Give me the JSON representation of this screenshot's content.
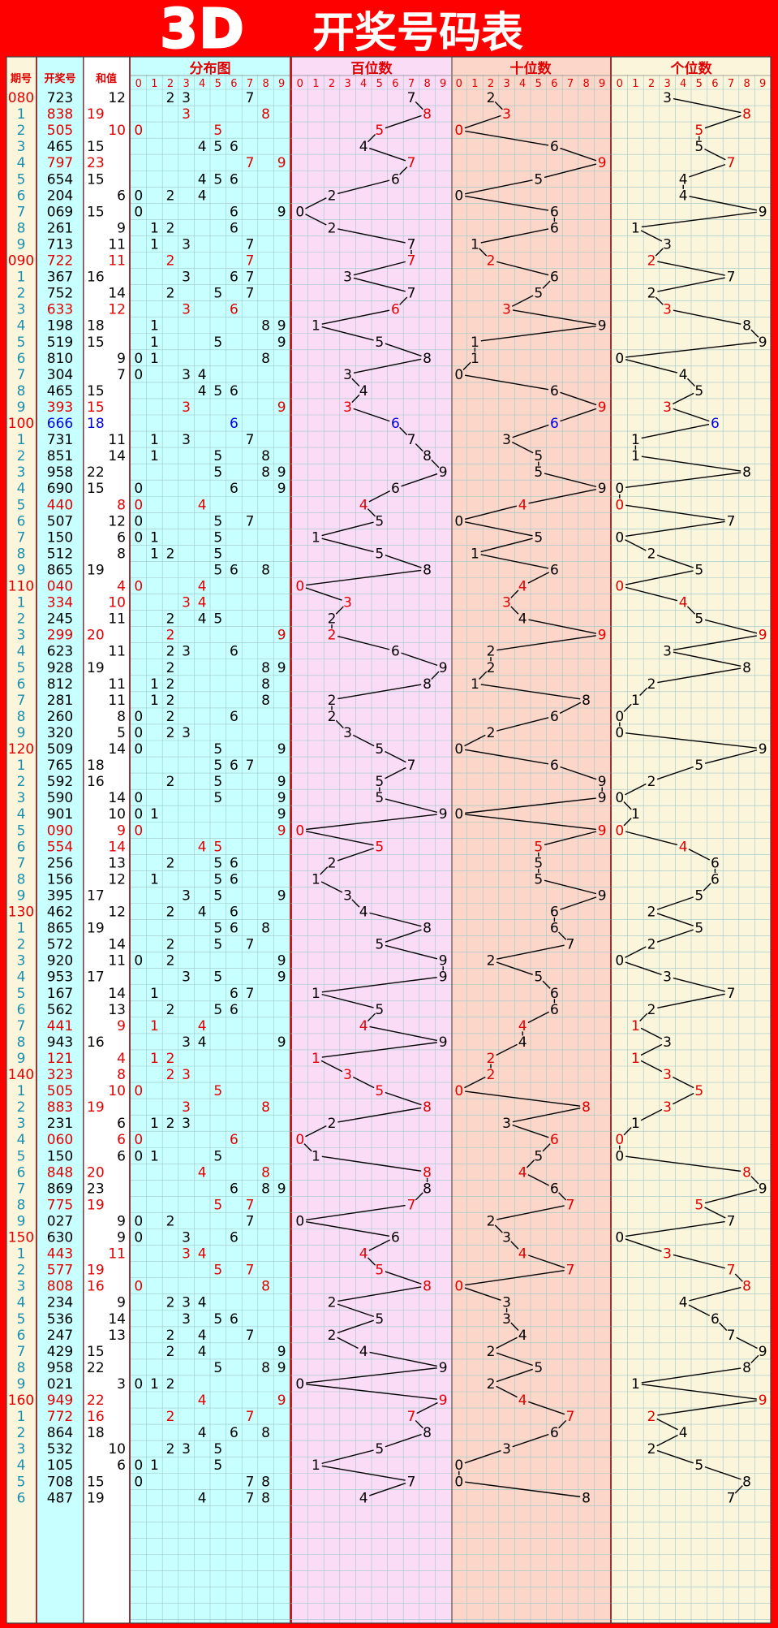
{
  "header": {
    "title_3d": "3D",
    "title_cn": "开奖号码表"
  },
  "columns": {
    "issue": "期号",
    "number": "开奖号",
    "sum": "和值",
    "distribution": "分布图",
    "hundreds": "百位数",
    "tens": "十位数",
    "units": "个位数",
    "digits": [
      "0",
      "1",
      "2",
      "3",
      "4",
      "5",
      "6",
      "7",
      "8",
      "9"
    ]
  },
  "colors": {
    "background": "#ff0000",
    "issue_bg": "#fbf5dc",
    "number_bg": "#c8ffff",
    "distribution_bg": "#c8ffff",
    "hundreds_bg": "#fbdcf7",
    "tens_bg": "#fbd6c9",
    "units_bg": "#fbf5dc",
    "highlight_red": "#e00000",
    "highlight_blue": "#0000e0",
    "grid": "#9ec8c8"
  },
  "chart_data": {
    "type": "table",
    "rows": [
      {
        "issue": "080",
        "number": "723",
        "sum": "12",
        "color": "black",
        "issue_red": true
      },
      {
        "issue": "1",
        "number": "838",
        "sum": "19",
        "color": "red"
      },
      {
        "issue": "2",
        "number": "505",
        "sum": "10",
        "color": "red"
      },
      {
        "issue": "3",
        "number": "465",
        "sum": "15",
        "color": "black"
      },
      {
        "issue": "4",
        "number": "797",
        "sum": "23",
        "color": "red"
      },
      {
        "issue": "5",
        "number": "654",
        "sum": "15",
        "color": "black"
      },
      {
        "issue": "6",
        "number": "204",
        "sum": "6",
        "color": "black"
      },
      {
        "issue": "7",
        "number": "069",
        "sum": "15",
        "color": "black"
      },
      {
        "issue": "8",
        "number": "261",
        "sum": "9",
        "color": "black"
      },
      {
        "issue": "9",
        "number": "713",
        "sum": "11",
        "color": "black"
      },
      {
        "issue": "090",
        "number": "722",
        "sum": "11",
        "color": "red",
        "issue_red": true
      },
      {
        "issue": "1",
        "number": "367",
        "sum": "16",
        "color": "black"
      },
      {
        "issue": "2",
        "number": "752",
        "sum": "14",
        "color": "black"
      },
      {
        "issue": "3",
        "number": "633",
        "sum": "12",
        "color": "red"
      },
      {
        "issue": "4",
        "number": "198",
        "sum": "18",
        "color": "black"
      },
      {
        "issue": "5",
        "number": "519",
        "sum": "15",
        "color": "black"
      },
      {
        "issue": "6",
        "number": "810",
        "sum": "9",
        "color": "black"
      },
      {
        "issue": "7",
        "number": "304",
        "sum": "7",
        "color": "black"
      },
      {
        "issue": "8",
        "number": "465",
        "sum": "15",
        "color": "black"
      },
      {
        "issue": "9",
        "number": "393",
        "sum": "15",
        "color": "red"
      },
      {
        "issue": "100",
        "number": "666",
        "sum": "18",
        "color": "blue",
        "issue_red": true
      },
      {
        "issue": "1",
        "number": "731",
        "sum": "11",
        "color": "black"
      },
      {
        "issue": "2",
        "number": "851",
        "sum": "14",
        "color": "black"
      },
      {
        "issue": "3",
        "number": "958",
        "sum": "22",
        "color": "black"
      },
      {
        "issue": "4",
        "number": "690",
        "sum": "15",
        "color": "black"
      },
      {
        "issue": "5",
        "number": "440",
        "sum": "8",
        "color": "red"
      },
      {
        "issue": "6",
        "number": "507",
        "sum": "12",
        "color": "black"
      },
      {
        "issue": "7",
        "number": "150",
        "sum": "6",
        "color": "black"
      },
      {
        "issue": "8",
        "number": "512",
        "sum": "8",
        "color": "black"
      },
      {
        "issue": "9",
        "number": "865",
        "sum": "19",
        "color": "black"
      },
      {
        "issue": "110",
        "number": "040",
        "sum": "4",
        "color": "red",
        "issue_red": true
      },
      {
        "issue": "1",
        "number": "334",
        "sum": "10",
        "color": "red"
      },
      {
        "issue": "2",
        "number": "245",
        "sum": "11",
        "color": "black"
      },
      {
        "issue": "3",
        "number": "299",
        "sum": "20",
        "color": "red"
      },
      {
        "issue": "4",
        "number": "623",
        "sum": "11",
        "color": "black"
      },
      {
        "issue": "5",
        "number": "928",
        "sum": "19",
        "color": "black"
      },
      {
        "issue": "6",
        "number": "812",
        "sum": "11",
        "color": "black"
      },
      {
        "issue": "7",
        "number": "281",
        "sum": "11",
        "color": "black"
      },
      {
        "issue": "8",
        "number": "260",
        "sum": "8",
        "color": "black"
      },
      {
        "issue": "9",
        "number": "320",
        "sum": "5",
        "color": "black"
      },
      {
        "issue": "120",
        "number": "509",
        "sum": "14",
        "color": "black",
        "issue_red": true
      },
      {
        "issue": "1",
        "number": "765",
        "sum": "18",
        "color": "black"
      },
      {
        "issue": "2",
        "number": "592",
        "sum": "16",
        "color": "black"
      },
      {
        "issue": "3",
        "number": "590",
        "sum": "14",
        "color": "black"
      },
      {
        "issue": "4",
        "number": "901",
        "sum": "10",
        "color": "black"
      },
      {
        "issue": "5",
        "number": "090",
        "sum": "9",
        "color": "red"
      },
      {
        "issue": "6",
        "number": "554",
        "sum": "14",
        "color": "red"
      },
      {
        "issue": "7",
        "number": "256",
        "sum": "13",
        "color": "black"
      },
      {
        "issue": "8",
        "number": "156",
        "sum": "12",
        "color": "black"
      },
      {
        "issue": "9",
        "number": "395",
        "sum": "17",
        "color": "black"
      },
      {
        "issue": "130",
        "number": "462",
        "sum": "12",
        "color": "black",
        "issue_red": true
      },
      {
        "issue": "1",
        "number": "865",
        "sum": "19",
        "color": "black"
      },
      {
        "issue": "2",
        "number": "572",
        "sum": "14",
        "color": "black"
      },
      {
        "issue": "3",
        "number": "920",
        "sum": "11",
        "color": "black"
      },
      {
        "issue": "4",
        "number": "953",
        "sum": "17",
        "color": "black"
      },
      {
        "issue": "5",
        "number": "167",
        "sum": "14",
        "color": "black"
      },
      {
        "issue": "6",
        "number": "562",
        "sum": "13",
        "color": "black"
      },
      {
        "issue": "7",
        "number": "441",
        "sum": "9",
        "color": "red"
      },
      {
        "issue": "8",
        "number": "943",
        "sum": "16",
        "color": "black"
      },
      {
        "issue": "9",
        "number": "121",
        "sum": "4",
        "color": "red"
      },
      {
        "issue": "140",
        "number": "323",
        "sum": "8",
        "color": "red",
        "issue_red": true
      },
      {
        "issue": "1",
        "number": "505",
        "sum": "10",
        "color": "red"
      },
      {
        "issue": "2",
        "number": "883",
        "sum": "19",
        "color": "red"
      },
      {
        "issue": "3",
        "number": "231",
        "sum": "6",
        "color": "black"
      },
      {
        "issue": "4",
        "number": "060",
        "sum": "6",
        "color": "red"
      },
      {
        "issue": "5",
        "number": "150",
        "sum": "6",
        "color": "black"
      },
      {
        "issue": "6",
        "number": "848",
        "sum": "20",
        "color": "red"
      },
      {
        "issue": "7",
        "number": "869",
        "sum": "23",
        "color": "black"
      },
      {
        "issue": "8",
        "number": "775",
        "sum": "19",
        "color": "red"
      },
      {
        "issue": "9",
        "number": "027",
        "sum": "9",
        "color": "black"
      },
      {
        "issue": "150",
        "number": "630",
        "sum": "9",
        "color": "black",
        "issue_red": true
      },
      {
        "issue": "1",
        "number": "443",
        "sum": "11",
        "color": "red"
      },
      {
        "issue": "2",
        "number": "577",
        "sum": "19",
        "color": "red"
      },
      {
        "issue": "3",
        "number": "808",
        "sum": "16",
        "color": "red"
      },
      {
        "issue": "4",
        "number": "234",
        "sum": "9",
        "color": "black"
      },
      {
        "issue": "5",
        "number": "536",
        "sum": "14",
        "color": "black"
      },
      {
        "issue": "6",
        "number": "247",
        "sum": "13",
        "color": "black"
      },
      {
        "issue": "7",
        "number": "429",
        "sum": "15",
        "color": "black"
      },
      {
        "issue": "8",
        "number": "958",
        "sum": "22",
        "color": "black"
      },
      {
        "issue": "9",
        "number": "021",
        "sum": "3",
        "color": "black"
      },
      {
        "issue": "160",
        "number": "949",
        "sum": "22",
        "color": "red",
        "issue_red": true
      },
      {
        "issue": "1",
        "number": "772",
        "sum": "16",
        "color": "red"
      },
      {
        "issue": "2",
        "number": "864",
        "sum": "18",
        "color": "black"
      },
      {
        "issue": "3",
        "number": "532",
        "sum": "10",
        "color": "black"
      },
      {
        "issue": "4",
        "number": "105",
        "sum": "6",
        "color": "black"
      },
      {
        "issue": "5",
        "number": "708",
        "sum": "15",
        "color": "black"
      },
      {
        "issue": "6",
        "number": "487",
        "sum": "19",
        "color": "black"
      }
    ]
  }
}
